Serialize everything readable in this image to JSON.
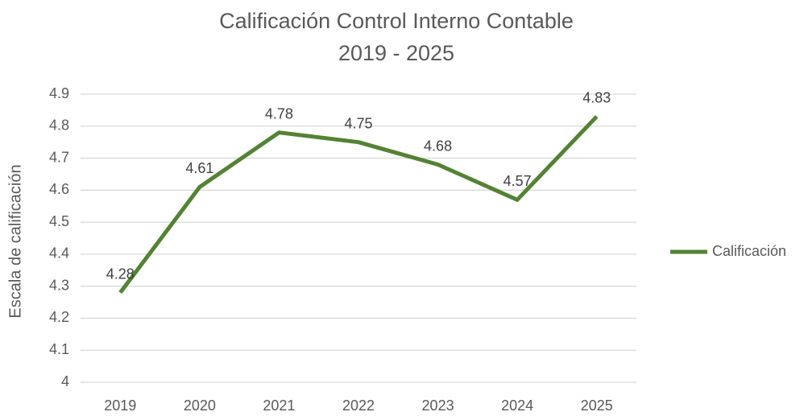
{
  "chart_data": {
    "type": "line",
    "title": "Calificación Control Interno Contable",
    "subtitle": "2019 - 2025",
    "y_label": "Escala de calificación",
    "categories": [
      "2019",
      "2020",
      "2021",
      "2022",
      "2023",
      "2024",
      "2025"
    ],
    "series": [
      {
        "name": "Calificación",
        "color": "#548235",
        "values": [
          4.28,
          4.61,
          4.78,
          4.75,
          4.68,
          4.57,
          4.83
        ]
      }
    ],
    "ylim": [
      4,
      4.9
    ],
    "yticks": [
      4,
      4.1,
      4.2,
      4.3,
      4.4,
      4.5,
      4.6,
      4.7,
      4.8,
      4.9
    ],
    "grid": true,
    "legend": "right",
    "data_labels": true
  }
}
